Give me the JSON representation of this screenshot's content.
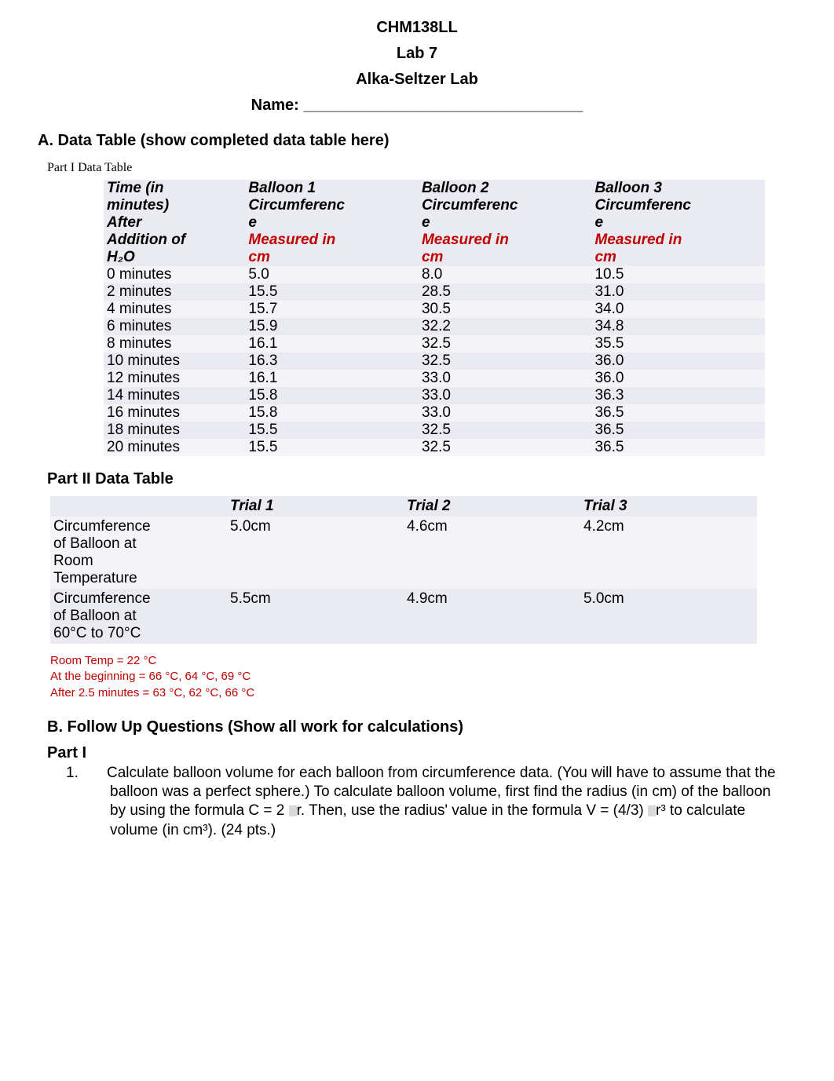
{
  "header": {
    "course": "CHM138LL",
    "lab_number": "Lab 7",
    "lab_title": "Alka-Seltzer Lab",
    "name_label": "Name:",
    "name_blank": " ________________________________"
  },
  "sectionA": {
    "heading": "A.  Data Table (show completed data table here)",
    "part1_caption": "Part I Data Table",
    "table1": {
      "type": "table",
      "columns": [
        {
          "line1": "Time (in",
          "line2": "minutes)",
          "line3": "After",
          "line4": "Addition of",
          "line5": "H₂O"
        },
        {
          "line1": "Balloon 1",
          "line2": "Circumferenc",
          "line3": "e",
          "red1": "Measured in",
          "red2": "cm"
        },
        {
          "line1": "Balloon 2",
          "line2": "Circumferenc",
          "line3": "e",
          "red1": "Measured in",
          "red2": "cm"
        },
        {
          "line1": "Balloon 3",
          "line2": "Circumferenc",
          "line3": "e",
          "red1": "Measured in",
          "red2": "cm"
        }
      ],
      "rows": [
        {
          "t": "0 minutes",
          "b1": "5.0",
          "b2": "8.0",
          "b3": "10.5"
        },
        {
          "t": "2 minutes",
          "b1": "15.5",
          "b2": "28.5",
          "b3": "31.0"
        },
        {
          "t": "4 minutes",
          "b1": "15.7",
          "b2": "30.5",
          "b3": "34.0"
        },
        {
          "t": "6 minutes",
          "b1": "15.9",
          "b2": "32.2",
          "b3": "34.8"
        },
        {
          "t": "8 minutes",
          "b1": "16.1",
          "b2": "32.5",
          "b3": "35.5"
        },
        {
          "t": "10 minutes",
          "b1": "16.3",
          "b2": "32.5",
          "b3": "36.0"
        },
        {
          "t": "12 minutes",
          "b1": "16.1",
          "b2": "33.0",
          "b3": "36.0"
        },
        {
          "t": "14 minutes",
          "b1": "15.8",
          "b2": "33.0",
          "b3": "36.3"
        },
        {
          "t": "16 minutes",
          "b1": "15.8",
          "b2": "33.0",
          "b3": "36.5"
        },
        {
          "t": "18 minutes",
          "b1": "15.5",
          "b2": "32.5",
          "b3": "36.5"
        },
        {
          "t": "20 minutes",
          "b1": "15.5",
          "b2": "32.5",
          "b3": "36.5"
        }
      ],
      "stripe_colors": {
        "even": "#f3f3f8",
        "odd": "#eaeaf2"
      },
      "header_text_color": "#000000",
      "red_text_color": "#c00000",
      "font_size_pt": 14
    },
    "part2_title": "Part II Data Table",
    "table2": {
      "type": "table",
      "headers": {
        "blank": "",
        "t1": "Trial 1",
        "t2": "Trial 2",
        "t3": "Trial 3"
      },
      "rows": [
        {
          "label_l1": "Circumference",
          "label_l2": "of Balloon at",
          "label_l3": "Room",
          "label_l4": "Temperature",
          "t1": "5.0cm",
          "t2": "4.6cm",
          "t3": "4.2cm"
        },
        {
          "label_l1": "Circumference",
          "label_l2": "of Balloon at",
          "label_l3": "60°C to 70°C",
          "label_l4": "",
          "t1": "5.5cm",
          "t2": "4.9cm",
          "t3": "5.0cm"
        }
      ],
      "stripe_colors": {
        "row1": "#f3f3f8",
        "row2": "#eaeaf2"
      }
    },
    "temp_notes": {
      "l1": "Room Temp = 22 °C",
      "l2": "At the beginning = 66 °C, 64 °C, 69 °C",
      "l3": "After 2.5 minutes = 63 °C, 62 °C, 66 °C",
      "color": "#c00000"
    }
  },
  "sectionB": {
    "heading": "B.  Follow Up Questions (Show all work for calculations)",
    "part_label": "Part I",
    "q1_num": "1.",
    "q1_a": "Calculate balloon volume for each balloon from circumference data.  (You will have to assume that the balloon was a perfect sphere.) To calculate balloon volume, first find the radius (in cm) of the balloon by using the formula C = 2",
    "q1_b": "r. Then, use the radius' value in the formula V = (4/3)",
    "q1_c": "r³ to calculate volume (in cm³).  (24 pts.)"
  }
}
